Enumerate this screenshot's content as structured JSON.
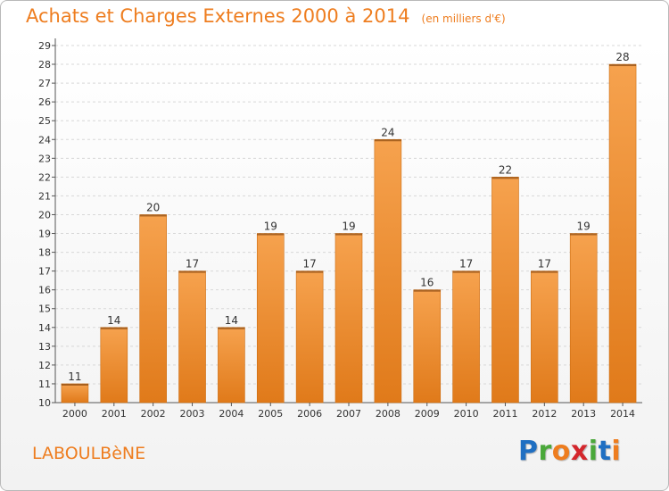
{
  "header": {
    "title": "Achats et Charges Externes 2000 à 2014",
    "unit": "(en milliers d'€)"
  },
  "footer": {
    "commune": "LABOULBèNE",
    "brand_letters": [
      {
        "ch": "P",
        "color": "#1f6fc2"
      },
      {
        "ch": "r",
        "color": "#4aa83a"
      },
      {
        "ch": "o",
        "color": "#ee7d1f"
      },
      {
        "ch": "x",
        "color": "#d4262c"
      },
      {
        "ch": "i",
        "color": "#4aa83a"
      },
      {
        "ch": "t",
        "color": "#1f6fc2"
      },
      {
        "ch": "i",
        "color": "#ee7d1f"
      }
    ]
  },
  "colors": {
    "accent": "#ee7d1f",
    "bar_top": "#f6a24e",
    "bar_bottom": "#e07a1a",
    "bar_edge": "#cc6d12",
    "grid": "#d8d8d8"
  },
  "chart_data": {
    "type": "bar",
    "title": "Achats et Charges Externes 2000 à 2014",
    "subtitle": "(en milliers d'€)",
    "categories": [
      "2000",
      "2001",
      "2002",
      "2003",
      "2004",
      "2005",
      "2006",
      "2007",
      "2008",
      "2009",
      "2010",
      "2011",
      "2012",
      "2013",
      "2014"
    ],
    "values": [
      11,
      14,
      20,
      17,
      14,
      19,
      17,
      19,
      24,
      16,
      17,
      22,
      17,
      19,
      28
    ],
    "ylim": [
      10,
      29
    ],
    "yticks": [
      10,
      11,
      12,
      13,
      14,
      15,
      16,
      17,
      18,
      19,
      20,
      21,
      22,
      23,
      24,
      25,
      26,
      27,
      28,
      29
    ],
    "grid": true,
    "data_labels": true
  }
}
